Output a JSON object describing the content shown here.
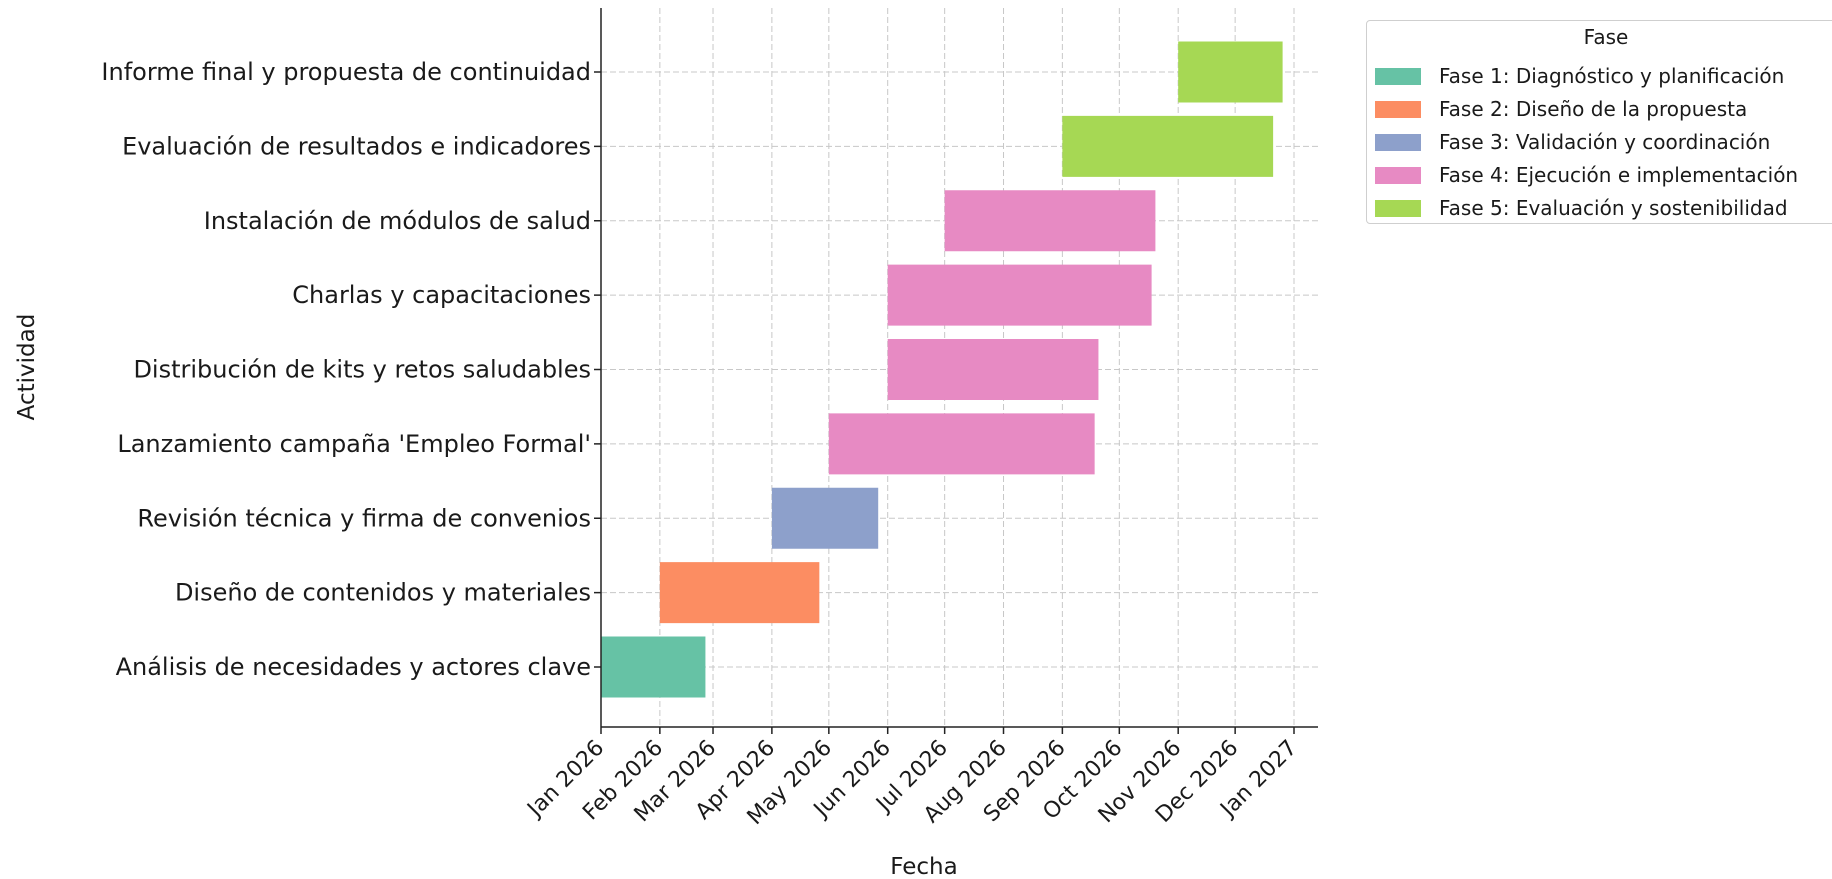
{
  "chart_data": {
    "type": "gantt",
    "title": "",
    "xlabel": "Fecha",
    "ylabel": "Actividad",
    "grid": true,
    "legend_position": "top-right",
    "x_ticks": [
      "Jan 2026",
      "Feb 2026",
      "Mar 2026",
      "Apr 2026",
      "May 2026",
      "Jun 2026",
      "Jul 2026",
      "Aug 2026",
      "Sep 2026",
      "Oct 2026",
      "Nov 2026",
      "Dec 2026",
      "Jan 2027"
    ],
    "legend": {
      "title": "Fase",
      "entries": [
        {
          "name": "Fase 1: Diagnóstico y planificación",
          "color": "#66c2a5"
        },
        {
          "name": "Fase 2: Diseño de la propuesta",
          "color": "#fc8d62"
        },
        {
          "name": "Fase 3: Validación y coordinación",
          "color": "#8da0cb"
        },
        {
          "name": "Fase 4: Ejecución e implementación",
          "color": "#e78ac3"
        },
        {
          "name": "Fase 5: Evaluación y sostenibilidad",
          "color": "#a6d854"
        }
      ]
    },
    "tasks": [
      {
        "label": "Informe final y propuesta de continuidad",
        "phase": 5,
        "start": "2026-11-01",
        "end": "2026-12-26"
      },
      {
        "label": "Evaluación de resultados e indicadores",
        "phase": 5,
        "start": "2026-09-01",
        "end": "2026-12-21"
      },
      {
        "label": "Instalación de módulos de salud",
        "phase": 4,
        "start": "2026-07-01",
        "end": "2026-10-20"
      },
      {
        "label": "Charlas y capacitaciones",
        "phase": 4,
        "start": "2026-06-01",
        "end": "2026-10-18"
      },
      {
        "label": "Distribución de kits y retos saludables",
        "phase": 4,
        "start": "2026-06-01",
        "end": "2026-09-20"
      },
      {
        "label": "Lanzamiento campaña 'Empleo Formal'",
        "phase": 4,
        "start": "2026-05-01",
        "end": "2026-09-18"
      },
      {
        "label": "Revisión técnica y firma de convenios",
        "phase": 3,
        "start": "2026-04-01",
        "end": "2026-05-27"
      },
      {
        "label": "Diseño de contenidos y materiales",
        "phase": 2,
        "start": "2026-02-01",
        "end": "2026-04-26"
      },
      {
        "label": "Análisis de necesidades y actores clave",
        "phase": 1,
        "start": "2026-01-01",
        "end": "2026-02-25"
      }
    ]
  }
}
